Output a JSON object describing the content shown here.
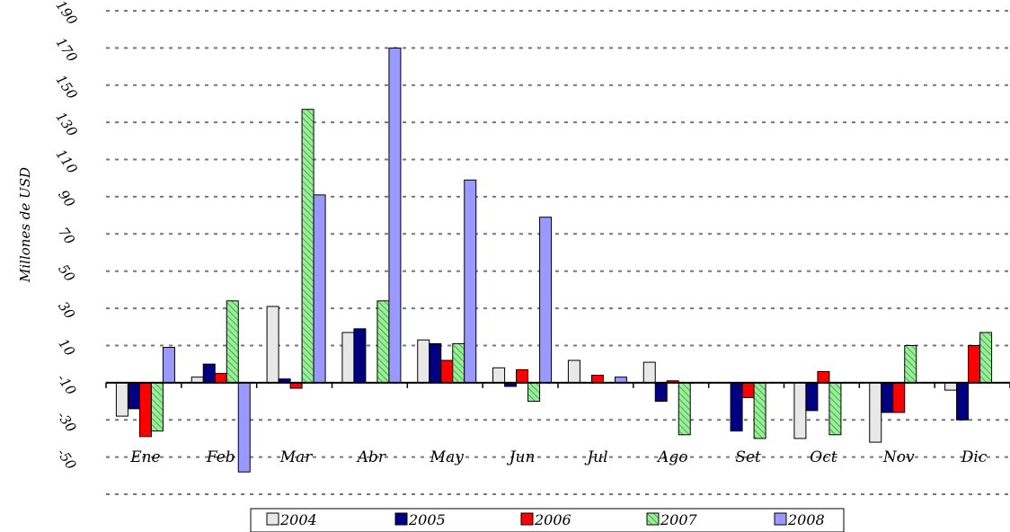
{
  "chart_data": {
    "type": "bar",
    "title": "",
    "xlabel": "",
    "ylabel": "Millones de USD",
    "ylim": [
      -70,
      190
    ],
    "yticks": [
      190,
      170,
      150,
      130,
      110,
      90,
      70,
      50,
      30,
      10,
      -10,
      -30,
      -50
    ],
    "ytick_labels": [
      "190",
      "170",
      "150",
      "130",
      "110",
      "90",
      "70",
      "50",
      "30",
      "10",
      "-10",
      "-30",
      "-50"
    ],
    "grid": true,
    "legend_position": "bottom",
    "categories": [
      "Ene",
      "Feb",
      "Mar",
      "Abr",
      "May",
      "Jun",
      "Jul",
      "Ago",
      "Set",
      "Oct",
      "Nov",
      "Dic"
    ],
    "series": [
      {
        "name": "2004",
        "color": "#e8e8e8",
        "pattern": "solid",
        "values": [
          -18,
          3,
          41,
          27,
          23,
          8,
          12,
          11,
          0,
          -30,
          -32,
          -4
        ]
      },
      {
        "name": "2005",
        "color": "#000080",
        "pattern": "solid",
        "values": [
          -14,
          10,
          2,
          29,
          21,
          -2,
          0,
          -10,
          -26,
          -15,
          -16,
          -20
        ]
      },
      {
        "name": "2006",
        "color": "#ff0000",
        "pattern": "solid",
        "values": [
          -29,
          5,
          -3,
          0,
          12,
          7,
          4,
          1,
          -8,
          6,
          -16,
          20
        ]
      },
      {
        "name": "2007",
        "color": "#99ee99",
        "pattern": "diagonal-hatch",
        "values": [
          -26,
          44,
          147,
          44,
          21,
          -10,
          0,
          -28,
          -30,
          -28,
          20,
          27
        ]
      },
      {
        "name": "2008",
        "color": "#9999ff",
        "pattern": "solid",
        "values": [
          19,
          -48,
          101,
          180,
          109,
          89,
          3,
          0,
          0,
          0,
          0,
          0
        ]
      }
    ]
  }
}
